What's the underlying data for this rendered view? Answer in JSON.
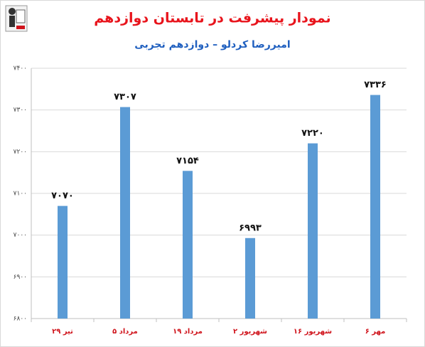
{
  "chart_data": {
    "type": "bar",
    "title": "نمودار پیشرفت در تابستان دوازدهم",
    "subtitle": "امیررضا کردلو – دوازدهم تجربی",
    "categories": [
      "۲۹ تیر",
      "۵ مرداد",
      "۱۹ مرداد",
      "۲ شهریور",
      "۱۶ شهریور",
      "۶ مهر"
    ],
    "values": [
      7070,
      7307,
      7154,
      6993,
      7220,
      7336
    ],
    "value_labels": [
      "۷۰۷۰",
      "۷۳۰۷",
      "۷۱۵۴",
      "۶۹۹۳",
      "۷۲۲۰",
      "۷۳۳۶"
    ],
    "color": "#5b9bd5",
    "ylim": [
      6800,
      7400
    ],
    "yticks": [
      {
        "value": 6800,
        "label": "۶۸۰۰"
      },
      {
        "value": 6900,
        "label": "۶۹۰۰"
      },
      {
        "value": 7000,
        "label": "۷۰۰۰"
      },
      {
        "value": 7100,
        "label": "۷۱۰۰"
      },
      {
        "value": 7200,
        "label": "۷۲۰۰"
      },
      {
        "value": 7300,
        "label": "۷۳۰۰"
      },
      {
        "value": 7400,
        "label": "۷۴۰۰"
      }
    ],
    "grid": true
  }
}
